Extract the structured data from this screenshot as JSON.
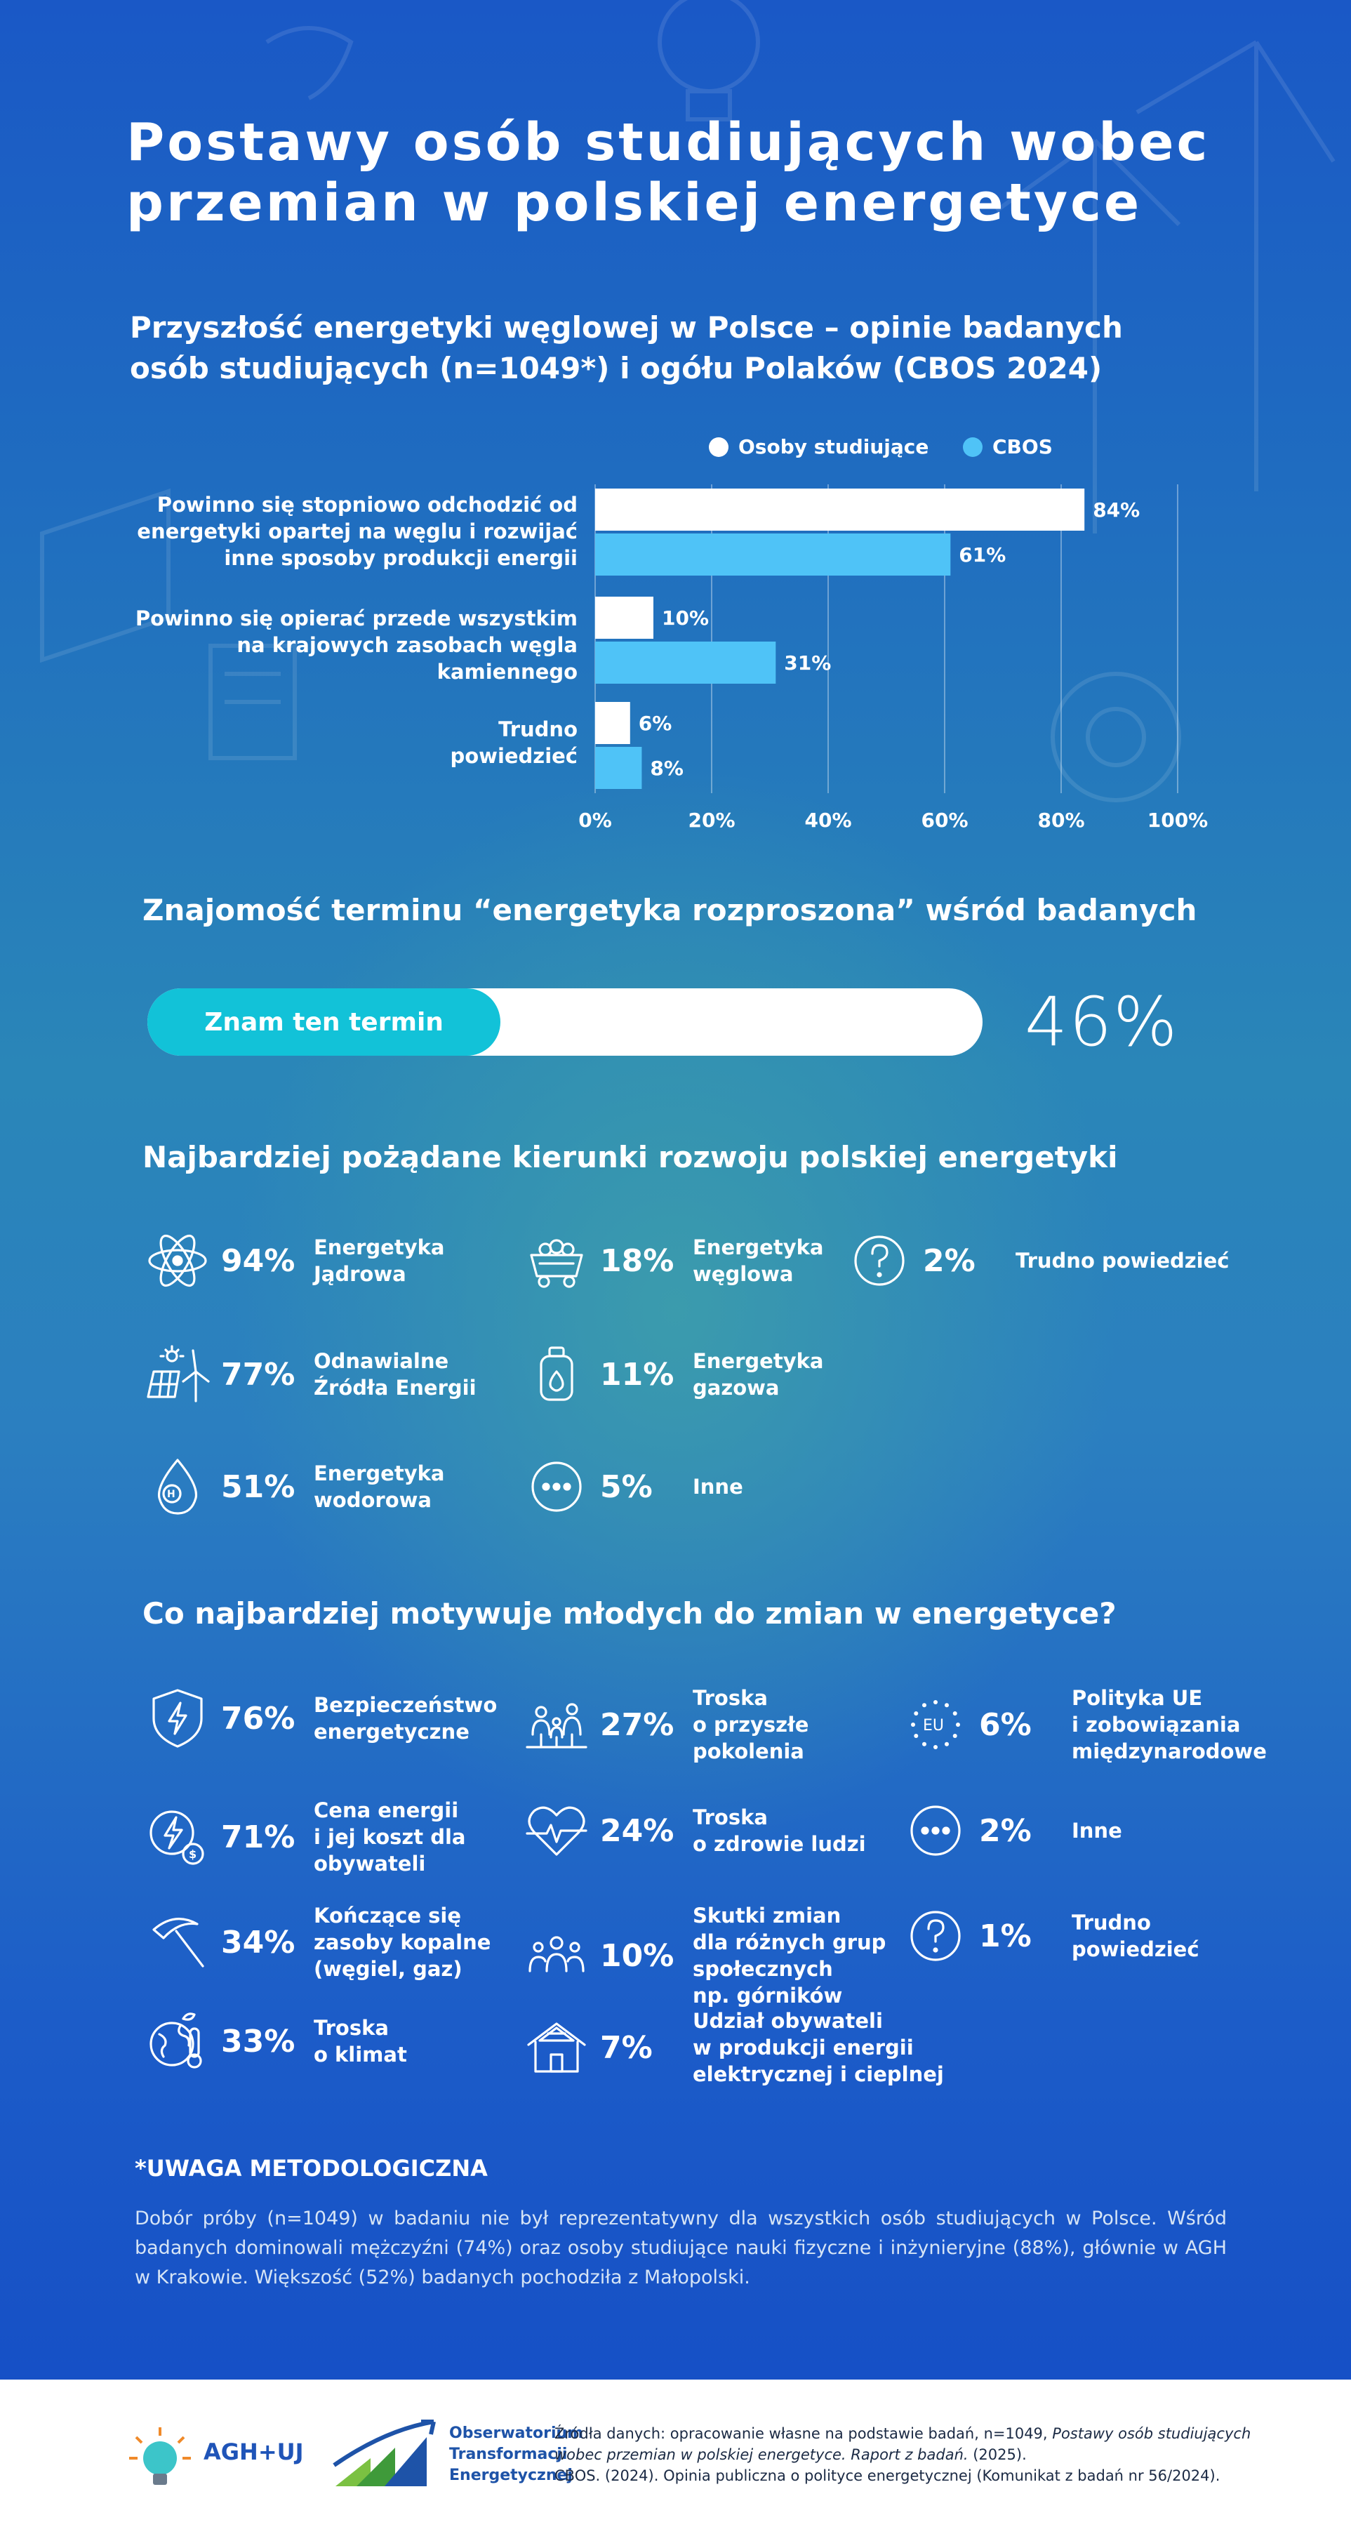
{
  "title_line1": "Postawy osób studiujących wobec",
  "title_line2": "przemian w polskiej energetyce",
  "section1": {
    "title_line1": "Przyszłość energetyki węglowej w Polsce – opinie badanych",
    "title_line2": "osób studiujących (n=1049*) i ogółu Polaków (CBOS 2024)"
  },
  "chart_data": {
    "type": "bar",
    "orientation": "horizontal",
    "title": "Przyszłość energetyki węglowej w Polsce – opinie badanych osób studiujących (n=1049*) i ogółu Polaków (CBOS 2024)",
    "categories": [
      [
        "Powinno się stopniowo odchodzić od",
        "energetyki opartej na węglu i rozwijać",
        "inne sposoby produkcji energii"
      ],
      [
        "Powinno się opierać przede wszystkim",
        "na krajowych zasobach węgla",
        "kamiennego"
      ],
      [
        "Trudno",
        "powiedzieć"
      ]
    ],
    "series": [
      {
        "name": "Osoby studiujące",
        "values": [
          84,
          10,
          6
        ],
        "labels": [
          "84%",
          "10%",
          "6%"
        ],
        "color": "#ffffff"
      },
      {
        "name": "CBOS",
        "values": [
          61,
          31,
          8
        ],
        "labels": [
          "61%",
          "31%",
          "8%"
        ],
        "color": "#4fc3f7"
      }
    ],
    "xlim": [
      0,
      100
    ],
    "xticks": [
      "0%",
      "20%",
      "40%",
      "60%",
      "80%",
      "100%"
    ],
    "grid": true,
    "legend": "top-right"
  },
  "section2": {
    "title": "Znajomość terminu “energetyka rozproszona” wśród badanych",
    "bar_label": "Znam ten termin",
    "value": 46,
    "value_label": "46%"
  },
  "section3": {
    "title": "Najbardziej pożądane kierunki rozwoju polskiej energetyki",
    "items": [
      {
        "icon": "atom-icon",
        "pct": "94%",
        "label": [
          "Energetyka",
          "Jądrowa"
        ]
      },
      {
        "icon": "coal-cart-icon",
        "pct": "18%",
        "label": [
          "Energetyka",
          "węglowa"
        ]
      },
      {
        "icon": "question-icon",
        "pct": "2%",
        "label": [
          "Trudno powiedzieć"
        ]
      },
      {
        "icon": "solar-wind-icon",
        "pct": "77%",
        "label": [
          "Odnawialne",
          "Źródła Energii"
        ]
      },
      {
        "icon": "gas-cylinder-icon",
        "pct": "11%",
        "label": [
          "Energetyka",
          "gazowa"
        ]
      },
      {
        "icon": "hydrogen-icon",
        "pct": "51%",
        "label": [
          "Energetyka",
          "wodorowa"
        ]
      },
      {
        "icon": "more-icon",
        "pct": "5%",
        "label": [
          "Inne"
        ]
      }
    ]
  },
  "section4": {
    "title": "Co najbardziej motywuje młodych do zmian w energetyce?",
    "items": [
      {
        "icon": "shield-bolt-icon",
        "pct": "76%",
        "label": [
          "Bezpieczeństwo",
          "energetyczne"
        ]
      },
      {
        "icon": "generations-icon",
        "pct": "27%",
        "label": [
          "Troska",
          "o przyszłe",
          "pokolenia"
        ]
      },
      {
        "icon": "eu-icon",
        "pct": "6%",
        "label": [
          "Polityka UE",
          "i zobowiązania",
          "międzynarodowe"
        ]
      },
      {
        "icon": "bolt-cost-icon",
        "pct": "71%",
        "label": [
          "Cena energii",
          "i jej koszt dla",
          "obywateli"
        ]
      },
      {
        "icon": "heart-pulse-icon",
        "pct": "24%",
        "label": [
          "Troska",
          "o zdrowie ludzi"
        ]
      },
      {
        "icon": "more-icon",
        "pct": "2%",
        "label": [
          "Inne"
        ]
      },
      {
        "icon": "pickaxe-icon",
        "pct": "34%",
        "label": [
          "Kończące się",
          "zasoby kopalne",
          "(węgiel, gaz)"
        ]
      },
      {
        "icon": "people-group-icon",
        "pct": "10%",
        "label": [
          "Skutki zmian",
          "dla różnych grup",
          "społecznych",
          "np. górników"
        ]
      },
      {
        "icon": "question-icon",
        "pct": "1%",
        "label": [
          "Trudno",
          "powiedzieć"
        ]
      },
      {
        "icon": "globe-thermometer-icon",
        "pct": "33%",
        "label": [
          "Troska",
          "o klimat"
        ]
      },
      {
        "icon": "solar-house-icon",
        "pct": "7%",
        "label": [
          "Udział obywateli",
          "w produkcji energii",
          "elektrycznej i cieplnej"
        ]
      }
    ]
  },
  "note": {
    "title": "*UWAGA METODOLOGICZNA",
    "text": "Dobór próby (n=1049) w badaniu nie był reprezentatywny dla wszystkich osób studiujących w Polsce. Wśród badanych dominowali mężczyźni (74%) oraz osoby studiujące nauki fizyczne i inżynieryjne (88%), głównie w AGH w Krakowie. Większość (52%) badanych pochodziła z Małopolski."
  },
  "footer": {
    "logo1": "AGH+UJ",
    "logo2": [
      "Obserwatorium",
      "Transformacji",
      "Energetycznej"
    ],
    "source_prefix": "Źródła danych: opracowanie własne na podstawie badań, n=1049, ",
    "source_italic": "Postawy osób studiujących wobec przemian w polskiej energetyce. Raport z badań.",
    "source_suffix": " (2025).",
    "source_line2": "CBOS. (2024). Opinia publiczna o polityce energetycznej (Komunikat z badań nr 56/2024)."
  }
}
